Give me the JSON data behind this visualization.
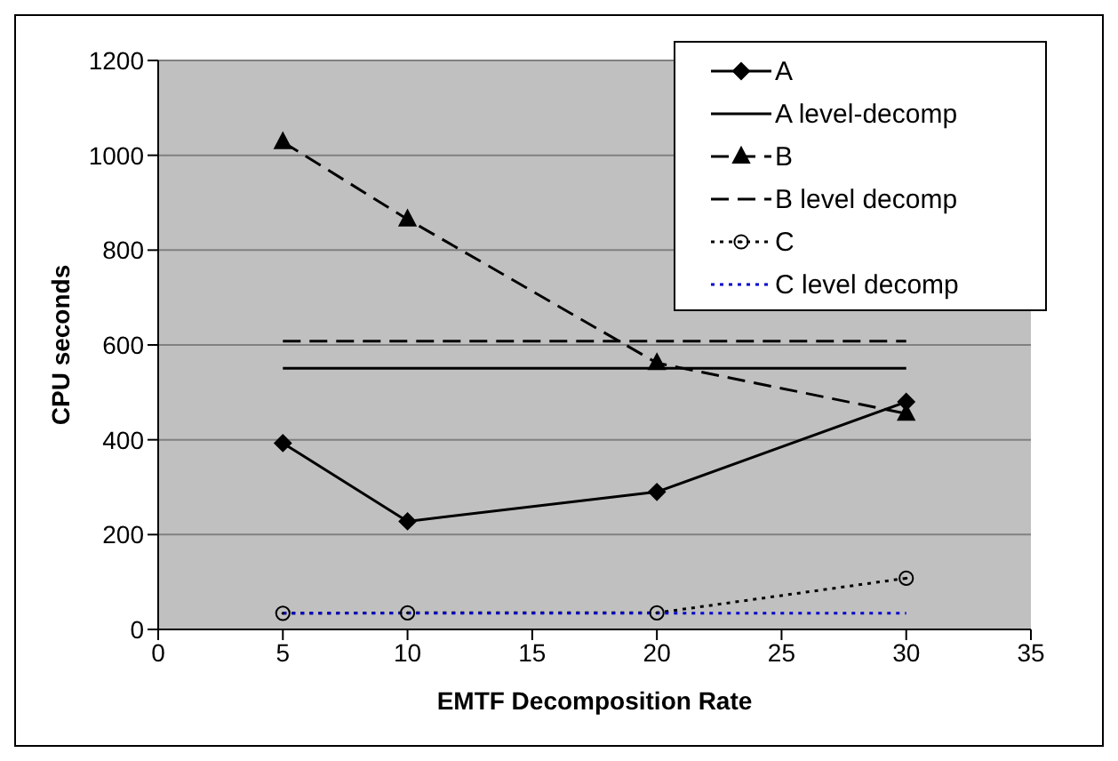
{
  "chart_data": {
    "type": "line",
    "xlabel": "EMTF Decomposition Rate",
    "ylabel": "CPU seconds",
    "x": [
      5,
      10,
      20,
      30
    ],
    "series": [
      {
        "name": "A",
        "color": "#000000",
        "values": [
          393,
          228,
          290,
          480
        ],
        "marker": "diamond",
        "line_style": "solid"
      },
      {
        "name": "A level-decomp",
        "color": "#000000",
        "values": [
          551,
          551,
          551,
          551
        ],
        "marker": "none",
        "line_style": "solid"
      },
      {
        "name": "B",
        "color": "#000000",
        "values": [
          1028,
          865,
          562,
          455
        ],
        "marker": "triangle",
        "line_style": "dashed"
      },
      {
        "name": "B level decomp",
        "color": "#000000",
        "values": [
          608,
          608,
          608,
          608
        ],
        "marker": "none",
        "line_style": "dashed"
      },
      {
        "name": "C",
        "color": "#000000",
        "values": [
          34,
          35,
          35,
          108
        ],
        "marker": "circle",
        "line_style": "dotted"
      },
      {
        "name": "C level decomp",
        "color": "#0000cc",
        "values": [
          34,
          34,
          34,
          34
        ],
        "marker": "none",
        "line_style": "dotted"
      }
    ],
    "xlim": [
      0,
      35
    ],
    "xticks": [
      0,
      5,
      10,
      15,
      20,
      25,
      30,
      35
    ],
    "ylim": [
      0,
      1200
    ],
    "yticks": [
      0,
      200,
      400,
      600,
      800,
      1000,
      1200
    ],
    "grid": "y",
    "legend": "top right"
  }
}
